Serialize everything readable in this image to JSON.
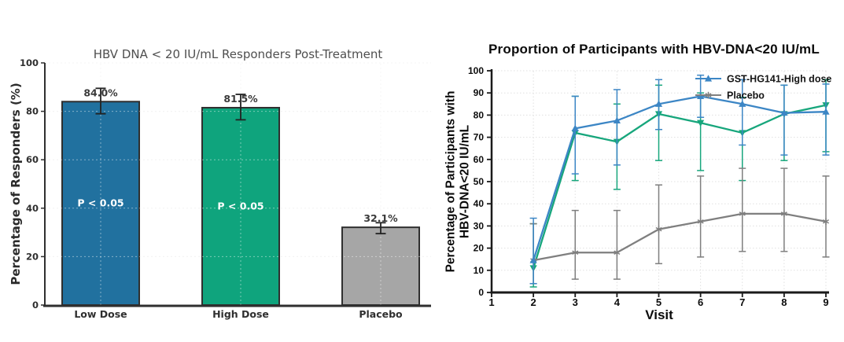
{
  "page": {
    "background": "#ffffff"
  },
  "chart_data": [
    {
      "id": "responders-bar",
      "type": "bar",
      "title": "HBV DNA < 20 IU/mL Responders Post-Treatment",
      "ylabel": "Percentage of Responders (%)",
      "xlabel": "",
      "categories": [
        "Low Dose",
        "High Dose",
        "Placebo"
      ],
      "values": [
        84.0,
        81.5,
        32.1
      ],
      "value_labels": [
        "84.0%",
        "81.5%",
        "32.1%"
      ],
      "error_low": [
        79.0,
        76.5,
        29.5
      ],
      "error_high": [
        89.5,
        87.0,
        34.0
      ],
      "bar_colors": [
        "#21719f",
        "#0fa47d",
        "#a6a6a6"
      ],
      "bar_edge_color": "#2f2f2f",
      "annotations": [
        {
          "bar_index": 0,
          "text": "P < 0.05"
        },
        {
          "bar_index": 1,
          "text": "P < 0.05"
        }
      ],
      "yticks": [
        0,
        20,
        40,
        60,
        80,
        100
      ],
      "ylim": [
        0,
        100
      ],
      "grid": true,
      "text_color": "#3a3a3a",
      "title_color": "#4f4f4f"
    },
    {
      "id": "proportion-line",
      "type": "line",
      "title": "Proportion of Participants with HBV-DNA<20 IU/mL",
      "ylabel_lines": [
        "Percentage of Participants with",
        "HBV-DNA<20 IU/mL"
      ],
      "xlabel": "Visit",
      "x": [
        2,
        3,
        4,
        5,
        6,
        7,
        8,
        9
      ],
      "xticks": [
        1,
        2,
        3,
        4,
        5,
        6,
        7,
        8,
        9
      ],
      "yticks": [
        0,
        10,
        20,
        30,
        40,
        50,
        60,
        70,
        80,
        90,
        100
      ],
      "xlim": [
        1,
        9
      ],
      "ylim": [
        0,
        100
      ],
      "grid": true,
      "series": [
        {
          "name": "GST-HG141-High dose",
          "color": "#3c86c5",
          "marker": "triangle-up",
          "values": [
            14.5,
            74.0,
            77.5,
            85.0,
            88.5,
            85.0,
            81.0,
            81.5
          ],
          "error_low": [
            4.0,
            53.5,
            57.5,
            73.5,
            79.0,
            66.5,
            62.0,
            62.0
          ],
          "error_high": [
            33.5,
            88.5,
            91.5,
            96.0,
            98.0,
            96.0,
            93.5,
            94.0
          ]
        },
        {
          "name": "",
          "color": "#17a67c",
          "marker": "triangle-down",
          "values": [
            11.0,
            72.0,
            68.0,
            80.5,
            76.5,
            72.0,
            80.5,
            84.5
          ],
          "error_low": [
            2.5,
            50.5,
            46.5,
            59.5,
            55.0,
            50.5,
            59.5,
            63.5
          ],
          "error_high": [
            31.0,
            88.5,
            85.0,
            93.5,
            90.0,
            88.0,
            93.5,
            96.0
          ]
        },
        {
          "name": "Placebo",
          "color": "#7f7f7f",
          "marker": "star",
          "values": [
            14.5,
            18.0,
            18.0,
            28.5,
            32.0,
            35.5,
            35.5,
            32.0
          ],
          "error_low": [
            4.0,
            6.0,
            6.0,
            13.0,
            16.0,
            18.5,
            18.5,
            16.0
          ],
          "error_high": [
            31.0,
            37.0,
            37.0,
            48.5,
            52.5,
            56.0,
            56.0,
            52.5
          ]
        }
      ],
      "legend": [
        {
          "label": "GST-HG141-High dose",
          "series_index": 0
        },
        {
          "label": "Placebo",
          "series_index": 2
        }
      ],
      "legend_position": "top-right"
    }
  ]
}
